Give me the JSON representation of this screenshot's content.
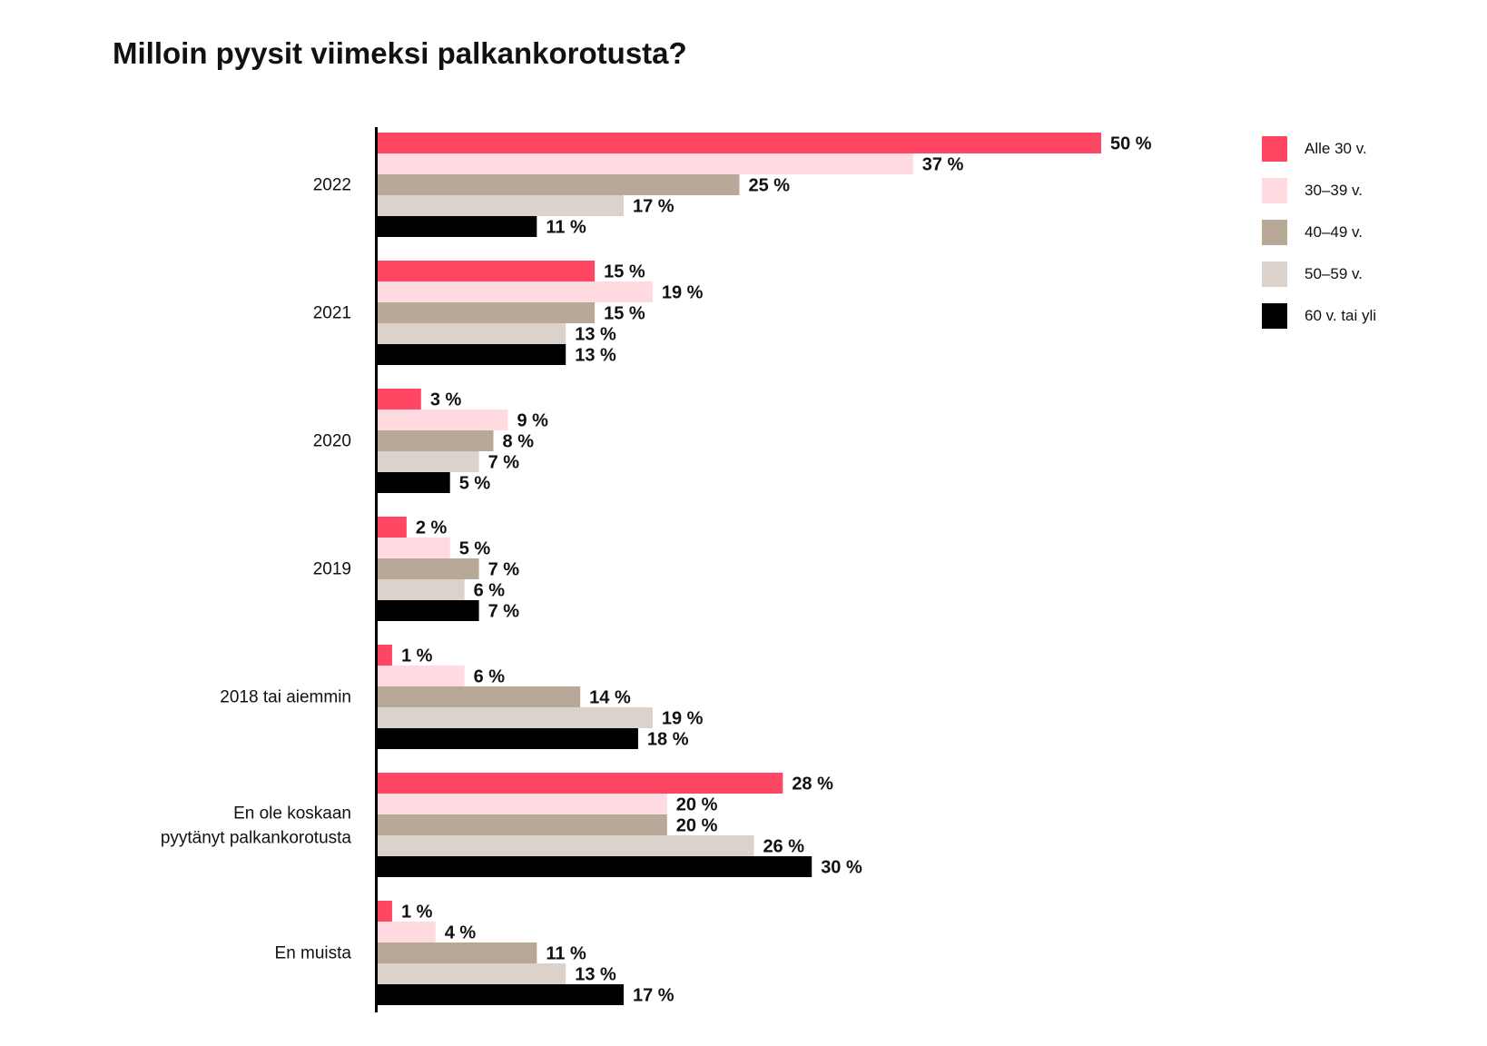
{
  "chart_data": {
    "type": "bar",
    "orientation": "horizontal",
    "title": "Milloin pyysit viimeksi palkankorotusta?",
    "xlabel": "",
    "ylabel": "",
    "value_suffix": " %",
    "xlim": [
      0,
      50
    ],
    "grid": false,
    "legend_position": "right",
    "categories": [
      "2022",
      "2021",
      "2020",
      "2019",
      "2018 tai aiemmin",
      "En ole koskaan\npyytänyt palkankorotusta",
      "En muista"
    ],
    "series": [
      {
        "name": "Alle 30 v.",
        "color": "#ff4764",
        "values": [
          50,
          15,
          3,
          2,
          1,
          28,
          1
        ]
      },
      {
        "name": "30–39 v.",
        "color": "#ffdae0",
        "values": [
          37,
          19,
          9,
          5,
          6,
          20,
          4
        ]
      },
      {
        "name": "40–49 v.",
        "color": "#b8a898",
        "values": [
          25,
          15,
          8,
          7,
          14,
          20,
          11
        ]
      },
      {
        "name": "50–59 v.",
        "color": "#dad2cb",
        "values": [
          17,
          13,
          7,
          6,
          19,
          26,
          13
        ]
      },
      {
        "name": "60 v. tai yli",
        "color": "#000000",
        "values": [
          11,
          13,
          5,
          7,
          18,
          30,
          17
        ]
      }
    ]
  }
}
